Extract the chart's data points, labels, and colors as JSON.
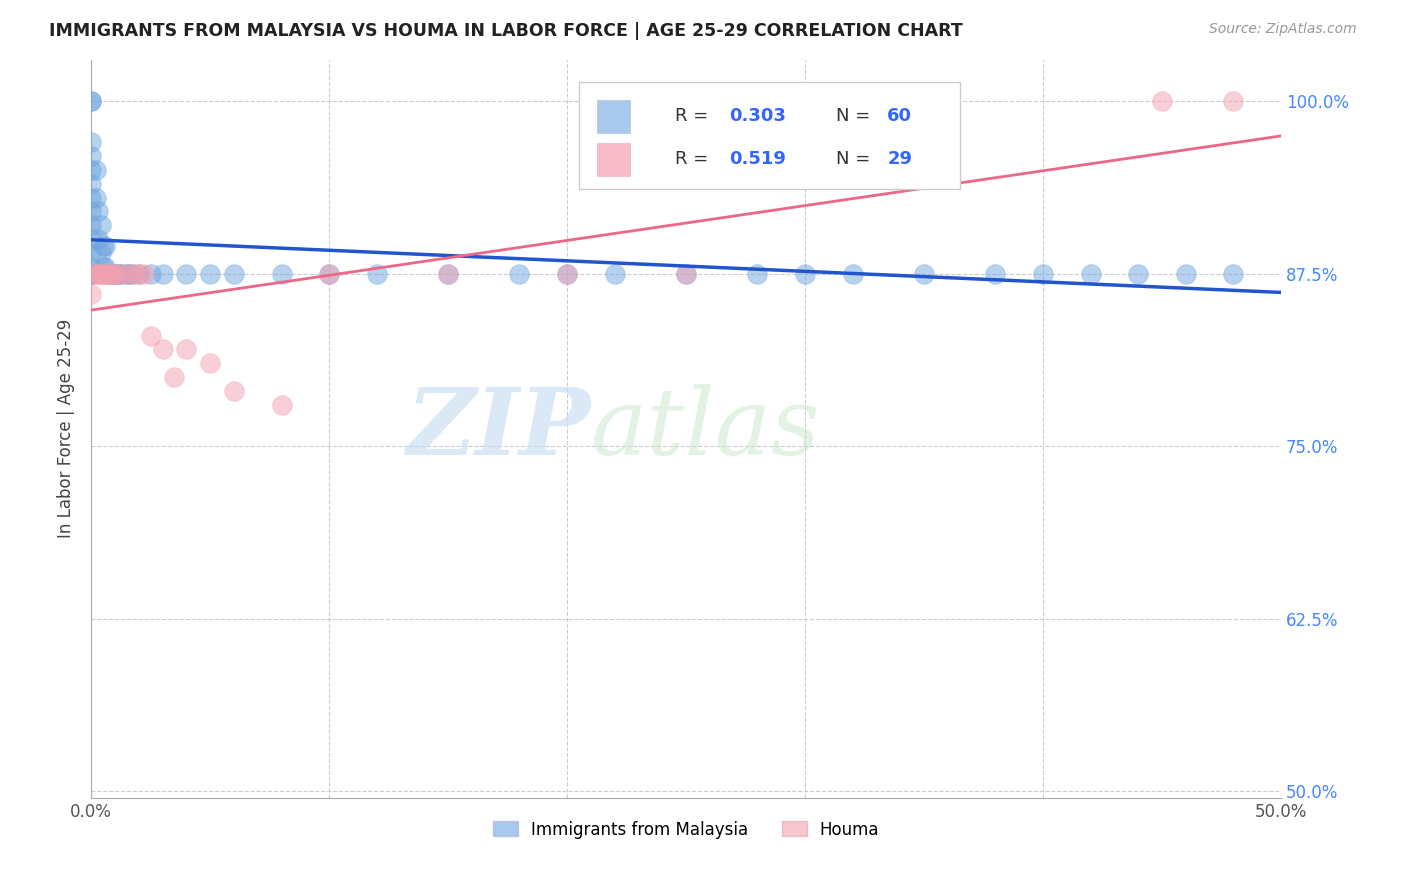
{
  "title": "IMMIGRANTS FROM MALAYSIA VS HOUMA IN LABOR FORCE | AGE 25-29 CORRELATION CHART",
  "source": "Source: ZipAtlas.com",
  "ylabel": "In Labor Force | Age 25-29",
  "xmin": 0.0,
  "xmax": 0.5,
  "ymin": 0.495,
  "ymax": 1.03,
  "y_ticks": [
    0.5,
    0.625,
    0.75,
    0.875,
    1.0
  ],
  "y_tick_labels": [
    "50.0%",
    "62.5%",
    "75.0%",
    "87.5%",
    "100.0%"
  ],
  "malaysia_R": 0.303,
  "malaysia_N": 60,
  "houma_R": 0.519,
  "houma_N": 29,
  "malaysia_color": "#6ea6e0",
  "houma_color": "#f4a0b0",
  "malaysia_line_color": "#2255cc",
  "houma_line_color": "#ee6688",
  "watermark_zip": "ZIP",
  "watermark_atlas": "atlas",
  "malaysia_x": [
    0.0,
    0.0,
    0.0,
    0.0,
    0.0,
    0.0,
    0.0,
    0.0,
    0.0,
    0.0,
    0.0,
    0.0,
    0.0,
    0.0,
    0.0,
    0.0,
    0.002,
    0.002,
    0.003,
    0.003,
    0.004,
    0.004,
    0.005,
    0.005,
    0.006,
    0.006,
    0.007,
    0.008,
    0.009,
    0.01,
    0.011,
    0.012,
    0.013,
    0.015,
    0.016,
    0.017,
    0.02,
    0.025,
    0.03,
    0.04,
    0.05,
    0.06,
    0.08,
    0.1,
    0.12,
    0.15,
    0.18,
    0.2,
    0.22,
    0.25,
    0.28,
    0.3,
    0.32,
    0.35,
    0.38,
    0.4,
    0.42,
    0.44,
    0.46,
    0.48
  ],
  "malaysia_y": [
    1.0,
    1.0,
    0.97,
    0.96,
    0.95,
    0.94,
    0.93,
    0.92,
    0.91,
    0.9,
    0.89,
    0.88,
    0.875,
    0.875,
    0.875,
    0.875,
    0.95,
    0.93,
    0.92,
    0.9,
    0.91,
    0.89,
    0.895,
    0.88,
    0.895,
    0.88,
    0.875,
    0.875,
    0.875,
    0.875,
    0.875,
    0.875,
    0.875,
    0.875,
    0.875,
    0.875,
    0.875,
    0.875,
    0.875,
    0.875,
    0.875,
    0.875,
    0.875,
    0.875,
    0.875,
    0.875,
    0.875,
    0.875,
    0.875,
    0.875,
    0.875,
    0.875,
    0.875,
    0.875,
    0.875,
    0.875,
    0.875,
    0.875,
    0.875,
    0.875
  ],
  "houma_x": [
    0.0,
    0.0,
    0.002,
    0.003,
    0.004,
    0.005,
    0.006,
    0.007,
    0.008,
    0.009,
    0.01,
    0.012,
    0.015,
    0.018,
    0.02,
    0.022,
    0.025,
    0.03,
    0.035,
    0.04,
    0.05,
    0.06,
    0.08,
    0.1,
    0.15,
    0.2,
    0.25,
    0.45,
    0.48
  ],
  "houma_y": [
    0.875,
    0.86,
    0.875,
    0.875,
    0.875,
    0.875,
    0.875,
    0.875,
    0.875,
    0.875,
    0.875,
    0.875,
    0.875,
    0.875,
    0.875,
    0.875,
    0.83,
    0.82,
    0.8,
    0.82,
    0.81,
    0.79,
    0.78,
    0.875,
    0.875,
    0.875,
    0.875,
    1.0,
    1.0
  ]
}
